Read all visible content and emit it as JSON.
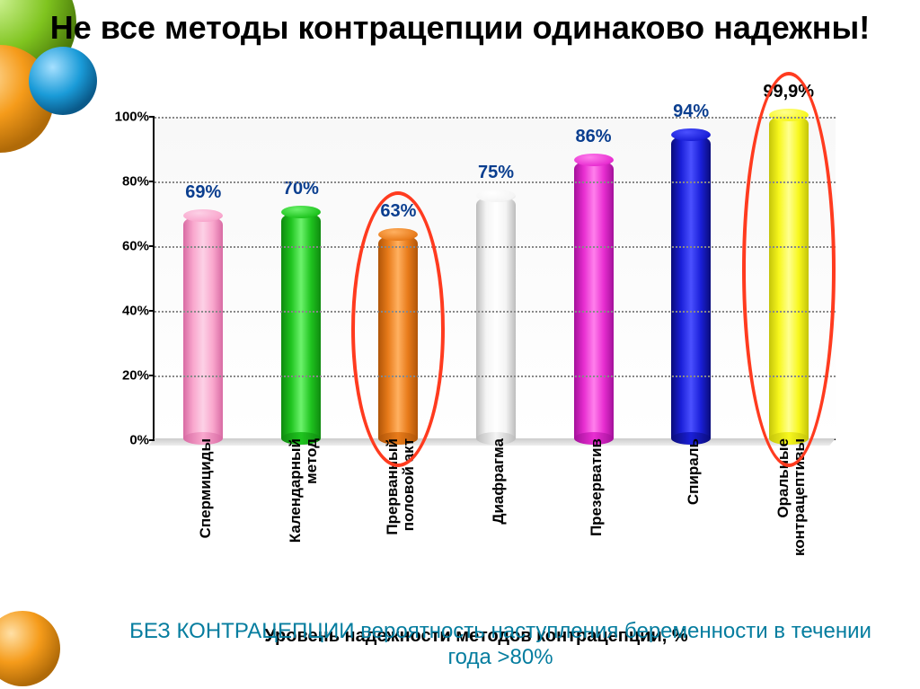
{
  "title": "Не все методы контрацепции одинаково надежны!",
  "x_axis_title": "Уровень надежности методов контрацепции, %",
  "footnote": "БЕЗ КОНТРАЦЕПЦИИ вероятность наступления беременности в течении года >80%",
  "chart": {
    "type": "bar",
    "ylim": [
      0,
      100
    ],
    "ytick_step": 20,
    "y_suffix": "%",
    "grid_color": "#888888",
    "background": "#ffffff",
    "highlight_color": "#ff3b1f",
    "bars": [
      {
        "category": "Спермициды",
        "value": 69,
        "label": "69%",
        "fill": "#f9a7cd",
        "dark": "#d86aa3",
        "light": "#fcd1e6",
        "label_color": "#0a3e8f"
      },
      {
        "category": "Календарный метод",
        "value": 70,
        "label": "70%",
        "fill": "#1fc41f",
        "dark": "#0f8a0f",
        "light": "#6cf26c",
        "label_color": "#0a3e8f"
      },
      {
        "category": "Прерванный половой акт",
        "value": 63,
        "label": "63%",
        "fill": "#e87b1a",
        "dark": "#b05508",
        "light": "#ffb060",
        "label_color": "#0a3e8f",
        "highlighted": true
      },
      {
        "category": "Диафрагма",
        "value": 75,
        "label": "75%",
        "fill": "#f4f4f4",
        "dark": "#bcbcbc",
        "light": "#ffffff",
        "label_color": "#0a3e8f"
      },
      {
        "category": "Презерватив",
        "value": 86,
        "label": "86%",
        "fill": "#e82ed1",
        "dark": "#a3109a",
        "light": "#ff80ec",
        "label_color": "#0a3e8f"
      },
      {
        "category": "Спираль",
        "value": 94,
        "label": "94%",
        "fill": "#1a1fd8",
        "dark": "#0a0c7a",
        "light": "#4a50ff",
        "label_color": "#0a3e8f"
      },
      {
        "category": "Оральные контрацептивы",
        "value": 99.9,
        "label": "99,9%",
        "fill": "#f7f71d",
        "dark": "#c4c40a",
        "light": "#ffff90",
        "label_color": "#000000",
        "highlighted": true
      }
    ]
  },
  "spheres": {
    "green": "#7fc41f",
    "orange": "#f59b1a",
    "blue": "#1a9bd8"
  }
}
